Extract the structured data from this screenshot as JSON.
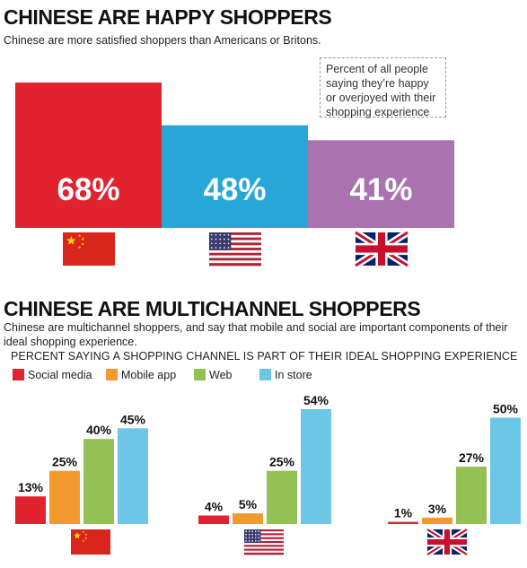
{
  "section1": {
    "title": "CHINESE ARE HAPPY SHOPPERS",
    "subtitle": "Chinese are more satisfied shoppers than Americans or Britons.",
    "note": "Percent of all people saying they’re happy or overjoyed with their shopping experience"
  },
  "section2": {
    "title": "CHINESE ARE MULTICHANNEL SHOPPERS",
    "subtitle": "Chinese are multichannel shoppers, and say that mobile and social are important components of their ideal shopping experience.",
    "chart_label": "PERCENT SAYING A SHOPPING CHANNEL IS PART OF THEIR IDEAL SHOPPING EXPERIENCE",
    "legend": [
      "Social media",
      "Mobile app",
      "Web",
      "In store"
    ]
  },
  "chart_data": [
    {
      "type": "bar",
      "title": "CHINESE ARE HAPPY SHOPPERS",
      "categories": [
        "China",
        "United States",
        "United Kingdom"
      ],
      "values": [
        68,
        48,
        41
      ],
      "labels": [
        "68%",
        "48%",
        "41%"
      ],
      "colors": [
        "#e0232e",
        "#27a7d8",
        "#a873ae"
      ],
      "category_icons": [
        "china-flag-icon",
        "us-flag-icon",
        "uk-flag-icon"
      ]
    },
    {
      "type": "bar",
      "title": "CHINESE ARE MULTICHANNEL SHOPPERS",
      "categories": [
        "China",
        "United States",
        "United Kingdom"
      ],
      "category_icons": [
        "china-flag-icon",
        "us-flag-icon",
        "uk-flag-icon"
      ],
      "series": [
        {
          "name": "Social media",
          "color": "#e0232e",
          "values": [
            13,
            4,
            1
          ],
          "labels": [
            "13%",
            "4%",
            "1%"
          ]
        },
        {
          "name": "Mobile app",
          "color": "#f29a2e",
          "values": [
            25,
            5,
            3
          ],
          "labels": [
            "25%",
            "5%",
            "3%"
          ]
        },
        {
          "name": "Web",
          "color": "#94c153",
          "values": [
            40,
            25,
            27
          ],
          "labels": [
            "40%",
            "25%",
            "27%"
          ]
        },
        {
          "name": "In store",
          "color": "#6cc6e6",
          "values": [
            45,
            54,
            50
          ],
          "labels": [
            "45%",
            "54%",
            "50%"
          ]
        }
      ]
    }
  ]
}
